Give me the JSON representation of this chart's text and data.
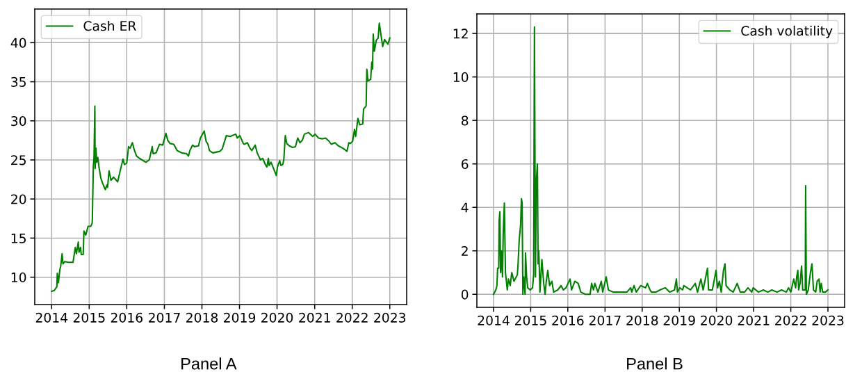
{
  "chart_data": [
    {
      "type": "line",
      "title": "Panel A",
      "legend": "top left",
      "grid": true,
      "xlim": [
        "2013-07-21",
        "2023-06-14"
      ],
      "xticks": [
        "2014",
        "2015",
        "2016",
        "2017",
        "2018",
        "2019",
        "2020",
        "2021",
        "2022",
        "2023"
      ],
      "ylim": [
        6.5,
        44.3
      ],
      "yticks": [
        10,
        15,
        20,
        25,
        30,
        35,
        40
      ],
      "x": [
        "2014-01-01",
        "2014-01-27",
        "2014-02-21",
        "2014-02-25",
        "2014-03-08",
        "2014-03-22",
        "2014-03-30",
        "2014-04-13",
        "2014-04-21",
        "2014-05-09",
        "2014-06-11",
        "2014-07-28",
        "2014-08-19",
        "2014-08-30",
        "2014-09-17",
        "2014-09-24",
        "2014-10-09",
        "2014-10-16",
        "2014-11-04",
        "2014-11-11",
        "2014-11-29",
        "2014-12-21",
        "2015-01-16",
        "2015-01-30",
        "2015-02-01",
        "2015-02-10",
        "2015-02-17",
        "2015-02-25",
        "2015-02-28",
        "2015-03-08",
        "2015-03-15",
        "2015-03-26",
        "2015-04-06",
        "2015-04-24",
        "2015-05-09",
        "2015-06-07",
        "2015-06-22",
        "2015-06-29",
        "2015-07-13",
        "2015-08-01",
        "2015-08-26",
        "2015-10-05",
        "2015-10-31",
        "2015-11-26",
        "2015-12-10",
        "2016-01-01",
        "2016-01-19",
        "2016-02-03",
        "2016-02-25",
        "2016-03-14",
        "2016-04-05",
        "2016-05-04",
        "2016-07-05",
        "2016-08-07",
        "2016-09-05",
        "2016-09-13",
        "2016-10-12",
        "2016-11-14",
        "2016-12-16",
        "2017-01-16",
        "2017-02-03",
        "2017-02-25",
        "2017-04-02",
        "2017-05-05",
        "2017-06-18",
        "2017-08-04",
        "2017-08-23",
        "2017-09-06",
        "2017-10-02",
        "2017-10-20",
        "2017-11-29",
        "2017-12-17",
        "2018-01-23",
        "2018-02-10",
        "2018-02-28",
        "2018-03-15",
        "2018-04-17",
        "2018-06-25",
        "2018-07-17",
        "2018-08-26",
        "2018-10-02",
        "2018-11-26",
        "2018-12-10",
        "2019-01-05",
        "2019-02-07",
        "2019-02-17",
        "2019-03-19",
        "2019-04-13",
        "2019-05-01",
        "2019-06-03",
        "2019-06-22",
        "2019-07-24",
        "2019-08-15",
        "2019-09-10",
        "2019-09-24",
        "2019-10-09",
        "2019-10-16",
        "2019-11-04",
        "2019-12-25",
        "2020-01-05",
        "2020-01-27",
        "2020-02-07",
        "2020-02-25",
        "2020-03-07",
        "2020-03-21",
        "2020-04-05",
        "2020-04-30",
        "2020-05-30",
        "2020-06-28",
        "2020-07-20",
        "2020-08-11",
        "2020-09-02",
        "2020-09-23",
        "2020-11-03",
        "2020-12-13",
        "2021-01-05",
        "2021-02-07",
        "2021-03-15",
        "2021-04-17",
        "2021-05-20",
        "2021-06-11",
        "2021-07-17",
        "2021-08-19",
        "2021-10-02",
        "2021-11-11",
        "2021-11-29",
        "2021-12-14",
        "2022-01-05",
        "2022-01-23",
        "2022-02-03",
        "2022-02-25",
        "2022-03-15",
        "2022-04-13",
        "2022-04-21",
        "2022-05-16",
        "2022-05-23",
        "2022-06-03",
        "2022-06-29",
        "2022-07-10",
        "2022-07-17",
        "2022-07-24",
        "2022-08-04",
        "2022-08-23",
        "2022-09-10",
        "2022-09-21",
        "2022-10-02",
        "2022-10-24",
        "2022-11-11",
        "2022-12-14",
        "2023-01-01"
      ],
      "series": [
        {
          "name": "Cash ER",
          "color": "#008000",
          "values": [
            8.2,
            8.3,
            8.8,
            10.5,
            9.3,
            11.0,
            11.4,
            13.0,
            11.7,
            12.0,
            11.9,
            11.9,
            13.8,
            13.0,
            14.5,
            13.2,
            13.8,
            12.9,
            12.9,
            15.9,
            15.4,
            16.5,
            16.5,
            16.9,
            17.5,
            24.1,
            25.3,
            31.9,
            23.9,
            26.5,
            24.7,
            25.3,
            24.1,
            22.7,
            22.1,
            21.2,
            21.8,
            21.5,
            23.6,
            22.4,
            22.8,
            22.2,
            23.7,
            25.1,
            24.4,
            24.6,
            26.7,
            26.5,
            27.2,
            26.3,
            25.5,
            25.2,
            24.7,
            25.0,
            26.7,
            25.8,
            25.9,
            27.0,
            26.9,
            28.4,
            27.5,
            27.1,
            27.0,
            26.2,
            25.9,
            25.8,
            25.5,
            26.2,
            26.9,
            26.7,
            26.8,
            27.8,
            28.7,
            27.4,
            27.0,
            26.2,
            25.9,
            26.1,
            26.4,
            28.1,
            28.0,
            28.3,
            27.8,
            28.1,
            27.1,
            27.0,
            27.2,
            26.5,
            26.2,
            26.9,
            25.9,
            25.0,
            25.2,
            24.4,
            24.1,
            25.2,
            24.3,
            24.7,
            23.0,
            24.1,
            24.9,
            24.3,
            24.4,
            25.0,
            28.1,
            27.1,
            26.8,
            26.6,
            26.7,
            27.8,
            27.2,
            27.5,
            28.3,
            28.5,
            28.0,
            28.3,
            27.8,
            27.7,
            27.8,
            27.4,
            27.0,
            27.2,
            26.8,
            26.5,
            26.1,
            27.2,
            27.1,
            27.4,
            28.9,
            28.0,
            30.3,
            29.5,
            29.6,
            31.5,
            31.9,
            36.6,
            35.1,
            35.3,
            37.5,
            36.6,
            41.1,
            38.9,
            40.3,
            40.6,
            42.5,
            41.5,
            39.5,
            40.4,
            39.8,
            40.6
          ]
        }
      ]
    },
    {
      "type": "line",
      "title": "Panel B",
      "legend": "top right",
      "grid": true,
      "xlim": [
        "2013-07-21",
        "2023-06-14"
      ],
      "xticks": [
        "2014",
        "2015",
        "2016",
        "2017",
        "2018",
        "2019",
        "2020",
        "2021",
        "2022",
        "2023"
      ],
      "ylim": [
        -0.6,
        12.9
      ],
      "yticks": [
        0,
        2,
        4,
        6,
        8,
        10,
        12
      ],
      "x": [
        "2014-01-01",
        "2014-01-23",
        "2014-02-03",
        "2014-02-10",
        "2014-02-21",
        "2014-02-25",
        "2014-03-04",
        "2014-03-11",
        "2014-03-19",
        "2014-03-30",
        "2014-04-06",
        "2014-04-17",
        "2014-04-28",
        "2014-05-16",
        "2014-05-27",
        "2014-06-14",
        "2014-06-29",
        "2014-07-21",
        "2014-08-23",
        "2014-08-30",
        "2014-09-10",
        "2014-09-24",
        "2014-10-02",
        "2014-10-09",
        "2014-10-16",
        "2014-10-24",
        "2014-11-07",
        "2014-11-11",
        "2014-11-22",
        "2014-12-03",
        "2014-12-28",
        "2015-01-19",
        "2015-01-30",
        "2015-02-07",
        "2015-02-17",
        "2015-02-25",
        "2015-03-08",
        "2015-03-15",
        "2015-03-22",
        "2015-04-02",
        "2015-04-13",
        "2015-04-21",
        "2015-05-09",
        "2015-05-23",
        "2015-06-03",
        "2015-06-18",
        "2015-07-06",
        "2015-07-28",
        "2015-08-15",
        "2015-09-24",
        "2015-10-27",
        "2015-11-18",
        "2015-12-14",
        "2016-01-23",
        "2016-02-07",
        "2016-03-10",
        "2016-04-12",
        "2016-05-08",
        "2016-06-21",
        "2016-08-07",
        "2016-08-22",
        "2016-09-09",
        "2016-09-23",
        "2016-10-23",
        "2016-11-25",
        "2016-12-09",
        "2017-01-12",
        "2017-02-03",
        "2017-03-22",
        "2017-05-27",
        "2017-08-04",
        "2017-09-10",
        "2017-09-21",
        "2017-10-13",
        "2017-11-04",
        "2017-12-17",
        "2018-02-03",
        "2018-02-21",
        "2018-03-19",
        "2018-04-02",
        "2018-05-16",
        "2018-06-25",
        "2018-08-15",
        "2018-09-28",
        "2018-11-15",
        "2018-12-03",
        "2018-12-14",
        "2019-01-05",
        "2019-02-03",
        "2019-02-14",
        "2019-03-19",
        "2019-04-21",
        "2019-06-07",
        "2019-06-29",
        "2019-08-01",
        "2019-08-23",
        "2019-10-05",
        "2019-10-16",
        "2019-11-22",
        "2019-12-28",
        "2020-01-12",
        "2020-01-30",
        "2020-02-17",
        "2020-03-10",
        "2020-03-25",
        "2020-04-05",
        "2020-05-11",
        "2020-06-13",
        "2020-07-23",
        "2020-08-22",
        "2020-10-04",
        "2020-11-06",
        "2020-12-13",
        "2020-12-27",
        "2021-02-17",
        "2021-04-06",
        "2021-05-20",
        "2021-06-29",
        "2021-08-19",
        "2021-10-02",
        "2021-11-18",
        "2021-12-10",
        "2022-01-01",
        "2022-01-30",
        "2022-02-17",
        "2022-02-28",
        "2022-03-11",
        "2022-03-19",
        "2022-04-02",
        "2022-04-17",
        "2022-04-28",
        "2022-05-12",
        "2022-05-23",
        "2022-05-27",
        "2022-06-03",
        "2022-06-22",
        "2022-07-13",
        "2022-07-28",
        "2022-08-12",
        "2022-09-03",
        "2022-09-17",
        "2022-10-05",
        "2022-10-16",
        "2022-10-27",
        "2022-11-11",
        "2022-12-07",
        "2023-01-01"
      ],
      "series": [
        {
          "name": "Cash volatility",
          "color": "#008000",
          "values": [
            0.0,
            0.2,
            0.4,
            1.2,
            1.2,
            3.4,
            3.8,
            1.0,
            2.0,
            0.8,
            2.8,
            4.2,
            1.0,
            0.2,
            0.7,
            0.4,
            1.0,
            0.6,
            0.9,
            1.4,
            2.5,
            3.2,
            4.4,
            4.2,
            0.0,
            0.8,
            0.0,
            1.9,
            0.8,
            0.3,
            0.2,
            0.3,
            0.9,
            12.3,
            0.8,
            5.2,
            6.0,
            1.4,
            2.0,
            0.1,
            1.0,
            1.6,
            0.5,
            0.0,
            0.6,
            1.1,
            0.4,
            0.6,
            0.1,
            0.2,
            0.4,
            0.2,
            0.3,
            0.7,
            0.2,
            0.6,
            0.5,
            0.1,
            0.0,
            0.0,
            0.5,
            0.2,
            0.5,
            0.1,
            0.6,
            0.1,
            0.8,
            0.2,
            0.1,
            0.1,
            0.1,
            0.3,
            0.1,
            0.4,
            0.1,
            0.4,
            0.3,
            0.5,
            0.2,
            0.1,
            0.1,
            0.2,
            0.3,
            0.1,
            0.2,
            0.7,
            0.1,
            0.3,
            0.2,
            0.4,
            0.3,
            0.2,
            0.5,
            0.1,
            0.7,
            0.2,
            1.2,
            0.2,
            0.2,
            1.1,
            0.3,
            0.6,
            0.1,
            1.1,
            1.4,
            0.4,
            0.2,
            0.1,
            0.5,
            0.1,
            0.1,
            0.3,
            0.1,
            0.3,
            0.1,
            0.2,
            0.1,
            0.2,
            0.1,
            0.2,
            0.1,
            0.3,
            0.1,
            0.7,
            0.3,
            0.8,
            1.1,
            0.2,
            0.5,
            1.3,
            0.2,
            0.2,
            0.2,
            5.0,
            0.0,
            0.2,
            1.0,
            1.4,
            0.2,
            0.1,
            0.6,
            0.7,
            0.1,
            0.5,
            0.1,
            0.1,
            0.2
          ]
        }
      ]
    }
  ]
}
